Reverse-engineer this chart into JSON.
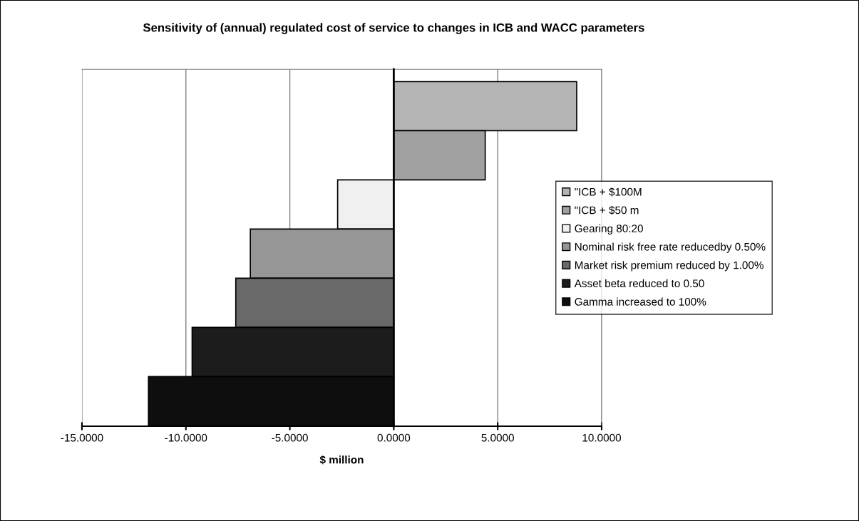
{
  "chart_data": {
    "type": "bar",
    "orientation": "horizontal",
    "title": "Sensitivity of (annual) regulated cost of service to changes in ICB and WACC parameters",
    "xlabel": "$ million",
    "categories": [
      null,
      null,
      null,
      null,
      null,
      null,
      null
    ],
    "series": [
      {
        "name": "\"ICB + $100M",
        "color": "#b4b4b4",
        "values": [
          8.8,
          null,
          null,
          null,
          null,
          null,
          null
        ]
      },
      {
        "name": "\"ICB + $50 m",
        "color": "#a0a0a0",
        "values": [
          null,
          4.4,
          null,
          null,
          null,
          null,
          null
        ]
      },
      {
        "name": "Gearing 80:20",
        "color": "#f0f0f0",
        "values": [
          null,
          null,
          -2.7,
          null,
          null,
          null,
          null
        ]
      },
      {
        "name": "Nominal risk free rate reducedby 0.50%",
        "color": "#969696",
        "values": [
          null,
          null,
          null,
          -6.9,
          null,
          null,
          null
        ]
      },
      {
        "name": "Market risk premium reduced by 1.00%",
        "color": "#696969",
        "values": [
          null,
          null,
          null,
          null,
          -7.6,
          null,
          null
        ]
      },
      {
        "name": "Asset beta reduced to 0.50",
        "color": "#1c1c1c",
        "values": [
          null,
          null,
          null,
          null,
          null,
          -9.7,
          null
        ]
      },
      {
        "name": "Gamma increased to 100%",
        "color": "#0e0e0e",
        "values": [
          null,
          null,
          null,
          null,
          null,
          null,
          -11.8
        ]
      }
    ],
    "xlim": [
      -15,
      10
    ],
    "xticks": [
      {
        "value": -15,
        "label": "-15.0000"
      },
      {
        "value": -10,
        "label": "-10.0000"
      },
      {
        "value": -5,
        "label": "-5.0000"
      },
      {
        "value": 0,
        "label": "0.0000"
      },
      {
        "value": 5,
        "label": "5.0000"
      },
      {
        "value": 10,
        "label": "10.0000"
      }
    ],
    "grid": "x",
    "legend": "right",
    "tick_labels": "x"
  }
}
